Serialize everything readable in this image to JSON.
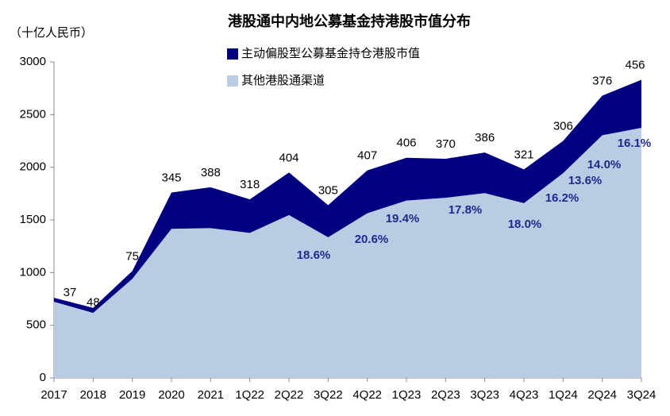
{
  "chart_data": {
    "type": "stacked-area",
    "title": "港股通中内地公募基金持港股市值分布",
    "y_label": "（十亿人民币）",
    "categories": [
      "2017",
      "2018",
      "2019",
      "2020",
      "2021",
      "1Q22",
      "2Q22",
      "3Q22",
      "4Q22",
      "1Q23",
      "2Q23",
      "3Q23",
      "4Q23",
      "1Q24",
      "2Q24",
      "3Q24"
    ],
    "series": [
      {
        "name": "其他港股通渠道",
        "color": "#b9cce4",
        "values": [
          723,
          617,
          940,
          1415,
          1422,
          1377,
          1546,
          1335,
          1563,
          1684,
          1710,
          1754,
          1659,
          1944,
          2304,
          2374
        ]
      },
      {
        "name": "主动偏股型公募基金持仓港股市值",
        "color": "#000080",
        "values": [
          37,
          48,
          75,
          345,
          388,
          318,
          404,
          305,
          407,
          406,
          370,
          386,
          321,
          306,
          376,
          456
        ]
      }
    ],
    "annotations": [
      "18.6%",
      "20.6%",
      "19.4%",
      "17.8%",
      "18.0%",
      "16.2%",
      "13.6%",
      "14.0%",
      "16.1%"
    ],
    "ylim": [
      0,
      3000
    ],
    "yticks": [
      0,
      500,
      1000,
      1500,
      2000,
      2500,
      3000
    ],
    "grid": false
  }
}
